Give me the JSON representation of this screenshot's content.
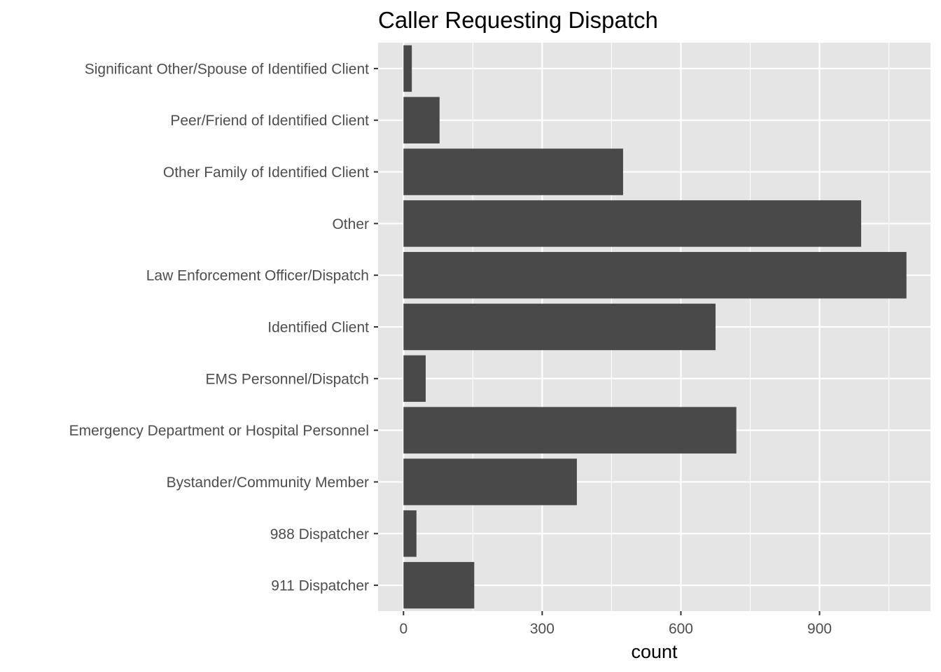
{
  "chart_data": {
    "type": "bar",
    "orientation": "horizontal",
    "title": "Caller Requesting Dispatch",
    "xlabel": "count",
    "ylabel": "",
    "categories": [
      "911 Dispatcher",
      "988 Dispatcher",
      "Bystander/Community Member",
      "Emergency Department or Hospital Personnel",
      "EMS Personnel/Dispatch",
      "Identified Client",
      "Law Enforcement Officer/Dispatch",
      "Other",
      "Other Family of Identified Client",
      "Peer/Friend of Identified Client",
      "Significant Other/Spouse of Identified Client"
    ],
    "values": [
      153,
      28,
      375,
      720,
      48,
      675,
      1088,
      990,
      475,
      78,
      18
    ],
    "xlim": [
      -55,
      1140
    ],
    "xticks": [
      0,
      300,
      600,
      900
    ],
    "grid": true,
    "legend": "none",
    "colors": {
      "bar": "#494949",
      "panel": "#e5e5e5",
      "grid": "#ffffff",
      "tick_text": "#4d4d4d",
      "tick_mark": "#333333"
    }
  }
}
